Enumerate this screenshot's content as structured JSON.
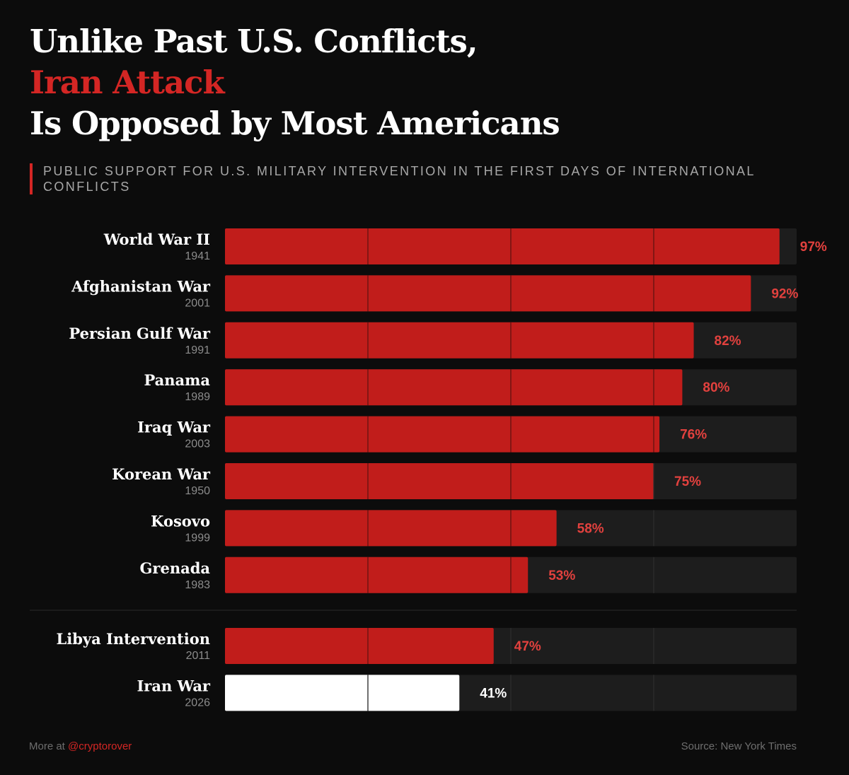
{
  "title": {
    "line1": "Unlike Past U.S. Conflicts,",
    "line2": "Iran Attack",
    "line3": "Is Opposed by Most Americans"
  },
  "subtitle": "PUBLIC SUPPORT FOR U.S. MILITARY INTERVENTION IN THE FIRST DAYS OF INTERNATIONAL CONFLICTS",
  "footer": {
    "more_at": "More at",
    "handle": "@cryptorover",
    "source": "Source: New York Times"
  },
  "colors": {
    "background": "#0c0c0c",
    "accent": "#d42624",
    "bar_red": "#c11d1b",
    "bar_highlight": "#ffffff",
    "track": "#1d1d1d"
  },
  "chart_data": {
    "type": "bar",
    "orientation": "horizontal",
    "title": "Unlike Past U.S. Conflicts, Iran Attack Is Opposed by Most Americans",
    "subtitle": "PUBLIC SUPPORT FOR U.S. MILITARY INTERVENTION IN THE FIRST DAYS OF INTERNATIONAL CONFLICTS",
    "xlim": [
      0,
      100
    ],
    "gridlines": [
      25,
      50,
      75
    ],
    "unit": "%",
    "groups": [
      {
        "items": [
          {
            "name": "World War II",
            "year": "1941",
            "value": 97
          },
          {
            "name": "Afghanistan War",
            "year": "2001",
            "value": 92
          },
          {
            "name": "Persian Gulf War",
            "year": "1991",
            "value": 82
          },
          {
            "name": "Panama",
            "year": "1989",
            "value": 80
          },
          {
            "name": "Iraq War",
            "year": "2003",
            "value": 76
          },
          {
            "name": "Korean War",
            "year": "1950",
            "value": 75
          },
          {
            "name": "Kosovo",
            "year": "1999",
            "value": 58
          },
          {
            "name": "Grenada",
            "year": "1983",
            "value": 53
          }
        ]
      },
      {
        "items": [
          {
            "name": "Libya Intervention",
            "year": "2011",
            "value": 47
          },
          {
            "name": "Iran War",
            "year": "2026",
            "value": 41,
            "highlight": true
          }
        ]
      }
    ]
  }
}
